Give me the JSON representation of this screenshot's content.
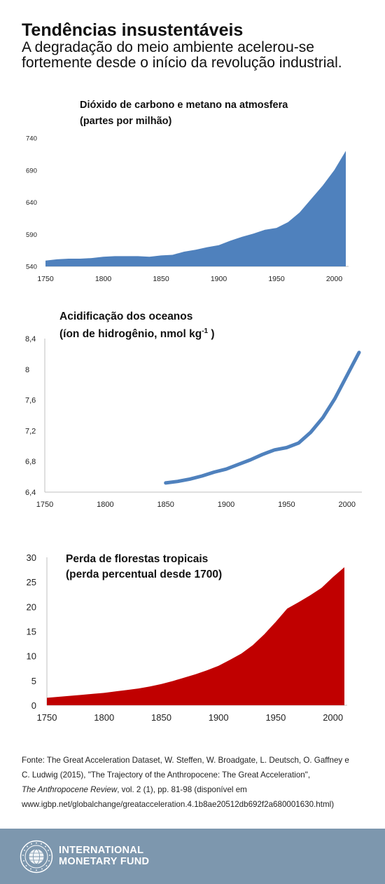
{
  "header": {
    "title": "Tendências insustentáveis",
    "subtitle_line1": "A degradação do meio ambiente acelerou-se",
    "subtitle_line2": "fortemente desde o início da revolução industrial."
  },
  "chart_data": [
    {
      "type": "area",
      "title": "Dióxido de carbono e metano na atmosfera",
      "subtitle": "(partes por milhão)",
      "color": "#4f81bd",
      "xlim": [
        1750,
        2010
      ],
      "ylim": [
        540,
        740
      ],
      "xticks": [
        1750,
        1800,
        1850,
        1900,
        1950,
        2000
      ],
      "yticks": [
        540,
        590,
        640,
        690,
        740
      ],
      "x": [
        1750,
        1760,
        1770,
        1780,
        1790,
        1800,
        1810,
        1820,
        1830,
        1840,
        1850,
        1860,
        1870,
        1880,
        1890,
        1900,
        1910,
        1920,
        1930,
        1940,
        1950,
        1960,
        1970,
        1980,
        1990,
        2000,
        2010
      ],
      "y": [
        549,
        551,
        552,
        552,
        553,
        555,
        556,
        556,
        556,
        555,
        557,
        558,
        563,
        566,
        570,
        573,
        580,
        586,
        591,
        597,
        600,
        609,
        624,
        645,
        666,
        690,
        720
      ]
    },
    {
      "type": "line",
      "title": "Acidificação dos oceanos",
      "subtitle": "(íon de hidrogênio, nmol kg",
      "subtitle_sup": "-1",
      "subtitle_end": " )",
      "color": "#4f81bd",
      "xlim": [
        1750,
        2010
      ],
      "ylim": [
        6.4,
        8.4
      ],
      "xticks": [
        1750,
        1800,
        1850,
        1900,
        1950,
        2000
      ],
      "yticks": [
        "6,4",
        "6,8",
        "7,2",
        "7,6",
        "8",
        "8,4"
      ],
      "ytick_values": [
        6.4,
        6.8,
        7.2,
        7.6,
        8.0,
        8.4
      ],
      "x": [
        1850,
        1860,
        1870,
        1880,
        1890,
        1900,
        1910,
        1920,
        1930,
        1940,
        1950,
        1960,
        1970,
        1980,
        1990,
        2000,
        2010
      ],
      "y": [
        6.52,
        6.54,
        6.57,
        6.61,
        6.66,
        6.7,
        6.76,
        6.82,
        6.89,
        6.95,
        6.98,
        7.04,
        7.18,
        7.37,
        7.62,
        7.92,
        8.22
      ]
    },
    {
      "type": "area",
      "title": "Perda de florestas tropicais",
      "subtitle": "(perda percentual desde 1700)",
      "color": "#c00000",
      "xlim": [
        1750,
        2010
      ],
      "ylim": [
        0,
        30
      ],
      "xticks": [
        1750,
        1800,
        1850,
        1900,
        1950,
        2000
      ],
      "yticks": [
        0,
        5,
        10,
        15,
        20,
        25,
        30
      ],
      "x": [
        1750,
        1760,
        1770,
        1780,
        1790,
        1800,
        1810,
        1820,
        1830,
        1840,
        1850,
        1860,
        1870,
        1880,
        1890,
        1900,
        1910,
        1920,
        1930,
        1940,
        1950,
        1960,
        1970,
        1980,
        1990,
        2000,
        2010
      ],
      "y": [
        1.5,
        1.7,
        1.9,
        2.1,
        2.3,
        2.5,
        2.8,
        3.1,
        3.4,
        3.8,
        4.3,
        4.9,
        5.6,
        6.3,
        7.1,
        8.0,
        9.2,
        10.5,
        12.2,
        14.4,
        16.9,
        19.6,
        20.9,
        22.3,
        23.8,
        26.0,
        28.0
      ]
    }
  ],
  "source": {
    "line1": "Fonte: The Great Acceleration Dataset, W. Steffen, W. Broadgate, L. Deutsch, O. Gaffney e",
    "line2": "C. Ludwig (2015), \"The Trajectory of the Anthropocene: The Great Acceleration\",",
    "line3_italic": "The Anthropocene Review",
    "line3_rest": ", vol. 2 (1), pp. 81-98 (disponível em",
    "line4": "www.igbp.net/globalchange/greatacceleration.4.1b8ae20512db692f2a680001630.html)"
  },
  "footer": {
    "brand_line1": "INTERNATIONAL",
    "brand_line2": "MONETARY FUND",
    "background": "#7d97ae",
    "icon": "imf-seal-icon"
  }
}
